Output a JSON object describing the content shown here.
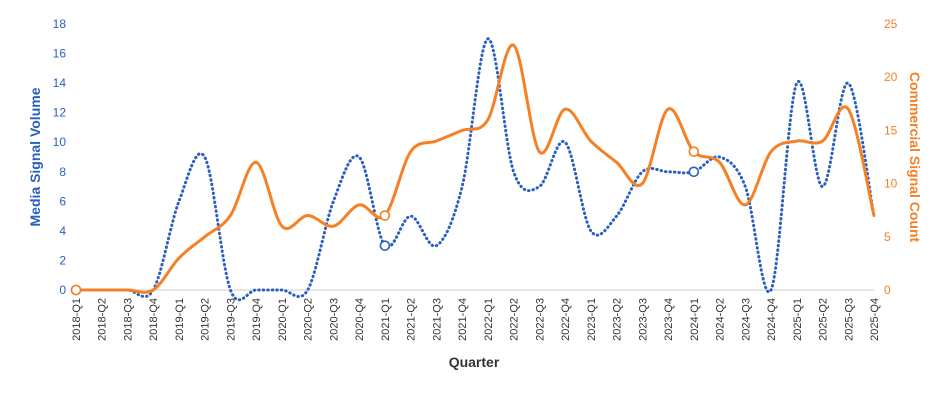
{
  "chart_data": {
    "type": "line",
    "xlabel": "Quarter",
    "ylabel_left": "Media Signal Volume",
    "ylabel_right": "Commercial Signal Count",
    "ylim_left": [
      0,
      18
    ],
    "ylim_right": [
      0,
      25
    ],
    "yticks_left": [
      0,
      2,
      4,
      6,
      8,
      10,
      12,
      14,
      16,
      18
    ],
    "yticks_right": [
      0,
      5,
      10,
      15,
      20,
      25
    ],
    "categories": [
      "2018-Q1",
      "2018-Q2",
      "2018-Q3",
      "2018-Q4",
      "2019-Q1",
      "2019-Q2",
      "2019-Q3",
      "2019-Q4",
      "2020-Q1",
      "2020-Q2",
      "2020-Q3",
      "2020-Q4",
      "2021-Q1",
      "2021-Q2",
      "2021-Q3",
      "2021-Q4",
      "2022-Q1",
      "2022-Q2",
      "2022-Q3",
      "2022-Q4",
      "2023-Q1",
      "2023-Q2",
      "2023-Q3",
      "2023-Q4",
      "2024-Q1",
      "2024-Q2",
      "2024-Q3",
      "2024-Q4",
      "2025-Q1",
      "2025-Q2",
      "2025-Q3",
      "2025-Q4"
    ],
    "grid": false,
    "legend": "none",
    "series": [
      {
        "axis": "left",
        "style": "dotted",
        "color": "#2a5fbf",
        "values": [
          0,
          0,
          0,
          0,
          6,
          9,
          0,
          0,
          0,
          0,
          6,
          9,
          3,
          5,
          3,
          7,
          17,
          8,
          7,
          10,
          4,
          5,
          8,
          8,
          8,
          9,
          7,
          0,
          14,
          7,
          14,
          5
        ],
        "highlight_indices": [
          0,
          12,
          24
        ]
      },
      {
        "axis": "right",
        "style": "solid",
        "color": "#f58025",
        "values": [
          0,
          0,
          0,
          0,
          3,
          5,
          7,
          12,
          6,
          7,
          6,
          8,
          7,
          13,
          14,
          15,
          16,
          23,
          13,
          17,
          14,
          12,
          10,
          17,
          13,
          12,
          8,
          13,
          14,
          14,
          17,
          7
        ],
        "highlight_indices": [
          0,
          12,
          24
        ]
      }
    ]
  }
}
